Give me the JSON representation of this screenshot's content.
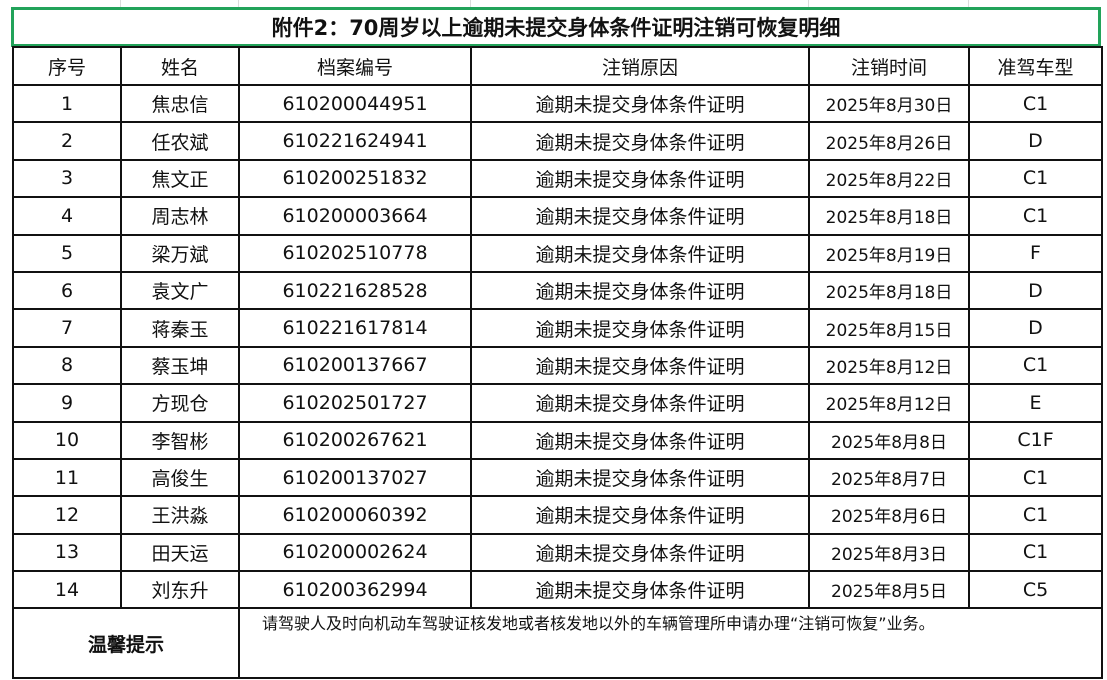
{
  "title": "附件2：70周岁以上逾期未提交身体条件证明注销可恢复明细",
  "colors": {
    "title_border": "#22a35a"
  },
  "columns": [
    "序号",
    "姓名",
    "档案编号",
    "注销原因",
    "注销时间",
    "准驾车型"
  ],
  "rows": [
    [
      "1",
      "焦忠信",
      "610200044951",
      "逾期未提交身体条件证明",
      "2025年8月30日",
      "C1"
    ],
    [
      "2",
      "任农斌",
      "610221624941",
      "逾期未提交身体条件证明",
      "2025年8月26日",
      "D"
    ],
    [
      "3",
      "焦文正",
      "610200251832",
      "逾期未提交身体条件证明",
      "2025年8月22日",
      "C1"
    ],
    [
      "4",
      "周志林",
      "610200003664",
      "逾期未提交身体条件证明",
      "2025年8月18日",
      "C1"
    ],
    [
      "5",
      "梁万斌",
      "610202510778",
      "逾期未提交身体条件证明",
      "2025年8月19日",
      "F"
    ],
    [
      "6",
      "袁文广",
      "610221628528",
      "逾期未提交身体条件证明",
      "2025年8月18日",
      "D"
    ],
    [
      "7",
      "蒋秦玉",
      "610221617814",
      "逾期未提交身体条件证明",
      "2025年8月15日",
      "D"
    ],
    [
      "8",
      "蔡玉坤",
      "610200137667",
      "逾期未提交身体条件证明",
      "2025年8月12日",
      "C1"
    ],
    [
      "9",
      "方现仓",
      "610202501727",
      "逾期未提交身体条件证明",
      "2025年8月12日",
      "E"
    ],
    [
      "10",
      "李智彬",
      "610200267621",
      "逾期未提交身体条件证明",
      "2025年8月8日",
      "C1F"
    ],
    [
      "11",
      "高俊生",
      "610200137027",
      "逾期未提交身体条件证明",
      "2025年8月7日",
      "C1"
    ],
    [
      "12",
      "王洪淼",
      "610200060392",
      "逾期未提交身体条件证明",
      "2025年8月6日",
      "C1"
    ],
    [
      "13",
      "田天运",
      "610200002624",
      "逾期未提交身体条件证明",
      "2025年8月3日",
      "C1"
    ],
    [
      "14",
      "刘东升",
      "610200362994",
      "逾期未提交身体条件证明",
      "2025年8月5日",
      "C5"
    ]
  ],
  "footer": {
    "label": "温馨提示",
    "text": "　请驾驶人及时向机动车驾驶证核发地或者核发地以外的车辆管理所申请办理“注销可恢复”业务。"
  }
}
